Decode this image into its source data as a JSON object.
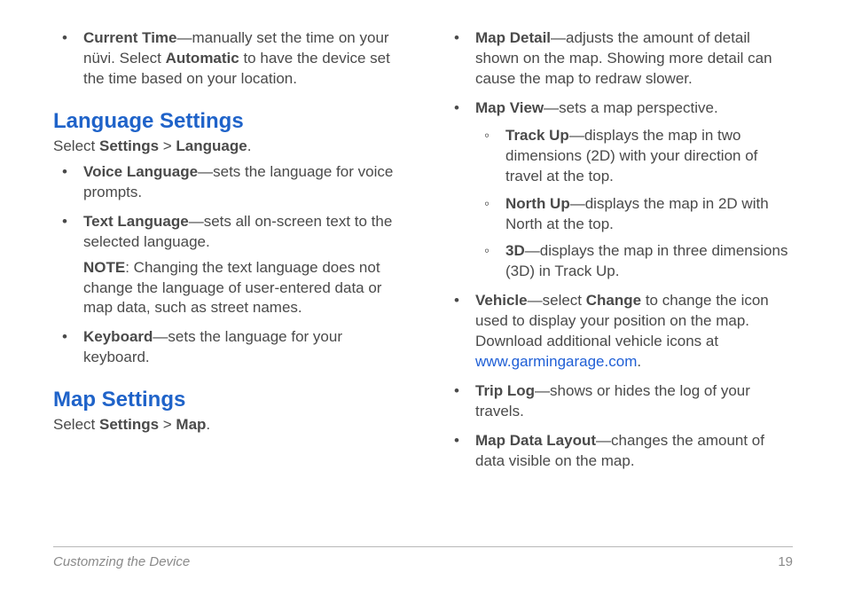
{
  "colors": {
    "heading": "#1f63c9",
    "body": "#4a4a4a",
    "link": "#1f5fd6",
    "footer": "#8a8a8a",
    "rule": "#b8b8b8",
    "background": "#ffffff"
  },
  "typography": {
    "body_fontsize_pt": 13,
    "heading_fontsize_pt": 18,
    "font_family": "Arial"
  },
  "left": {
    "currentTime": {
      "label": "Current Time",
      "text1": "—manually set the time on your nüvi. Select ",
      "bold1": "Automatic",
      "text2": " to have the device set the time based on your location."
    },
    "langHeading": "Language Settings",
    "langIntro1": "Select ",
    "langIntroB1": "Settings",
    "langIntroSep": " > ",
    "langIntroB2": "Language",
    "langIntroEnd": ".",
    "voice": {
      "label": "Voice Language",
      "text": "—sets the language for voice prompts."
    },
    "textLang": {
      "label": "Text Language",
      "text": "—sets all on-screen text to the selected language.",
      "noteLabel": "NOTE",
      "noteText": ": Changing the text language does not change the language of user-entered data or map data, such as street names."
    },
    "keyboard": {
      "label": "Keyboard",
      "text": "—sets the language for your keyboard."
    },
    "mapHeading": "Map Settings",
    "mapIntro1": "Select ",
    "mapIntroB1": "Settings",
    "mapIntroSep": " > ",
    "mapIntroB2": "Map",
    "mapIntroEnd": "."
  },
  "right": {
    "mapDetail": {
      "label": "Map Detail",
      "text": "—adjusts the amount of detail shown on the map. Showing more detail can cause the map to redraw slower."
    },
    "mapView": {
      "label": "Map View",
      "text": "—sets a map perspective.",
      "trackUp": {
        "label": "Track Up",
        "text": "—displays the map in two dimensions (2D) with your direction of travel at the top."
      },
      "northUp": {
        "label": "North Up",
        "text": "—displays the map in 2D with North at the top."
      },
      "threeD": {
        "label": "3D",
        "text": "—displays the map in three dimensions (3D) in Track Up."
      }
    },
    "vehicle": {
      "label": "Vehicle",
      "text1": "—select ",
      "bold1": "Change",
      "text2": " to change the icon used to display your position on the map. Download additional vehicle icons at ",
      "link": "www.garmingarage.com",
      "text3": "."
    },
    "tripLog": {
      "label": "Trip Log",
      "text": "—shows or hides the log of your travels."
    },
    "mapDataLayout": {
      "label": "Map Data Layout",
      "text": "—changes the amount of data visible on the map."
    }
  },
  "footer": {
    "section": "Customzing the Device",
    "page": "19"
  }
}
